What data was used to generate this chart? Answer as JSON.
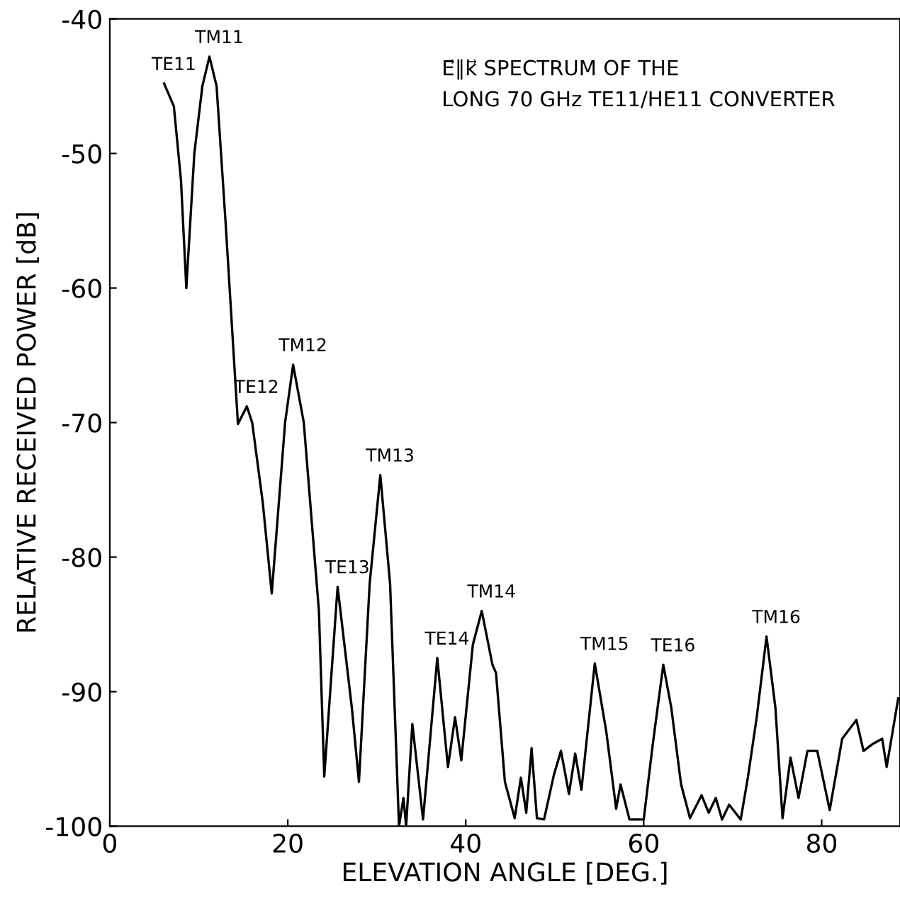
{
  "chart_data": {
    "type": "line",
    "title": "E⃗∥k⃗ SPECTRUM OF THE\nLONG 70 GHz TE11/HE11 CONVERTER",
    "xlabel": "ELEVATION ANGLE [DEG.]",
    "ylabel": "RELATIVE RECEIVED POWER [dB]",
    "xlim": [
      0,
      88.8
    ],
    "ylim": [
      -100,
      -40
    ],
    "xticks": [
      0,
      20,
      40,
      60,
      80
    ],
    "yticks": [
      -100,
      -90,
      -80,
      -70,
      -60,
      -50,
      -40
    ],
    "grid": false,
    "legend": false,
    "marker": "none",
    "line_style": "solid",
    "series": [
      {
        "color": "#000000",
        "x": [
          6.1,
          7.2,
          8.0,
          8.6,
          9.5,
          10.4,
          11.2,
          12.0,
          13.0,
          14.4,
          15.4,
          16.0,
          17.2,
          18.2,
          19.7,
          20.6,
          21.8,
          23.5,
          24.1,
          25.6,
          27.2,
          28.0,
          29.2,
          30.4,
          31.5,
          32.5,
          33.0,
          33.3,
          34.0,
          35.2,
          36.8,
          38.0,
          38.8,
          39.5,
          40.8,
          41.8,
          43.0,
          43.4,
          44.4,
          45.5,
          46.2,
          46.8,
          47.4,
          48.0,
          48.8,
          49.9,
          50.7,
          51.6,
          52.3,
          53.0,
          54.5,
          55.8,
          56.9,
          57.4,
          58.4,
          60.0,
          61.0,
          62.2,
          63.1,
          64.2,
          65.2,
          66.5,
          67.3,
          68.1,
          68.8,
          69.6,
          70.9,
          71.7,
          72.7,
          73.8,
          74.8,
          75.6,
          76.5,
          77.4,
          78.4,
          79.5,
          80.9,
          82.3,
          83.9,
          84.7,
          85.7,
          86.8,
          87.3,
          88.6
        ],
        "values": [
          -44.8,
          -46.5,
          -52,
          -60,
          -50,
          -45,
          -42.8,
          -45,
          -55,
          -70.1,
          -68.8,
          -70,
          -76,
          -82.7,
          -70,
          -65.7,
          -70,
          -84,
          -96.3,
          -82.2,
          -91.2,
          -96.7,
          -82,
          -73.9,
          -82,
          -100,
          -97.9,
          -100,
          -92.4,
          -99.5,
          -87.5,
          -95.6,
          -91.9,
          -95.1,
          -86.5,
          -84,
          -88,
          -88.6,
          -96.7,
          -99.4,
          -96.4,
          -99,
          -94.2,
          -99.4,
          -99.5,
          -96.2,
          -94.4,
          -97.6,
          -94.6,
          -97.3,
          -87.9,
          -93.0,
          -98.7,
          -96.9,
          -99.5,
          -99.5,
          -94.0,
          -88.0,
          -91.2,
          -96.9,
          -99.4,
          -97.7,
          -99,
          -97.9,
          -99.5,
          -98.4,
          -99.5,
          -96.4,
          -91.9,
          -85.9,
          -91.2,
          -99.4,
          -94.9,
          -97.9,
          -94.4,
          -94.4,
          -98.8,
          -93.5,
          -92.1,
          -94.4,
          -93.9,
          -93.5,
          -95.6,
          -90.5
        ]
      }
    ],
    "annotations": [
      {
        "text": "TE11",
        "x": 6.1,
        "y": -44.8
      },
      {
        "text": "TM11",
        "x": 11.2,
        "y": -42.8
      },
      {
        "text": "TE12",
        "x": 15.4,
        "y": -68.8
      },
      {
        "text": "TM12",
        "x": 20.6,
        "y": -65.7
      },
      {
        "text": "TE13",
        "x": 25.6,
        "y": -82.2
      },
      {
        "text": "TM13",
        "x": 30.4,
        "y": -73.9
      },
      {
        "text": "TE14",
        "x": 36.8,
        "y": -87.5
      },
      {
        "text": "TM14",
        "x": 41.8,
        "y": -84
      },
      {
        "text": "TM15",
        "x": 54.5,
        "y": -87.9
      },
      {
        "text": "TE16",
        "x": 62.2,
        "y": -88.0
      },
      {
        "text": "TM16",
        "x": 73.8,
        "y": -85.9
      }
    ]
  }
}
